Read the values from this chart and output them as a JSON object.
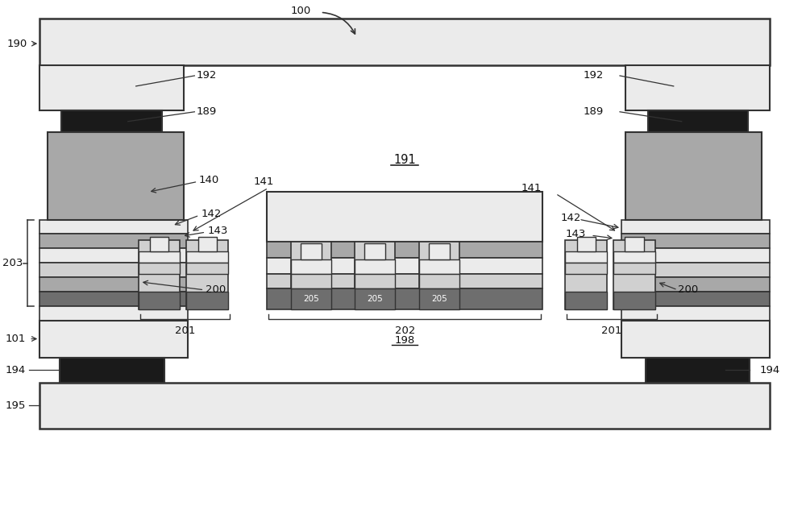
{
  "bg_color": "#ffffff",
  "light_gray": "#d0d0d0",
  "mid_gray": "#a8a8a8",
  "dark_gray": "#6e6e6e",
  "black": "#1a1a1a",
  "very_light_gray": "#ebebeb",
  "outline_color": "#333333"
}
